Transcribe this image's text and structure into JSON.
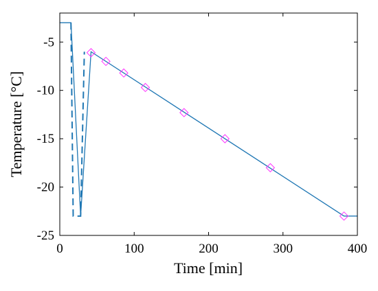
{
  "chart_data": {
    "type": "line",
    "xlabel": "Time [min]",
    "ylabel": "Temperature [°C]",
    "xlim": [
      0,
      400
    ],
    "ylim": [
      -25,
      -2
    ],
    "xticks": [
      0,
      100,
      200,
      300,
      400
    ],
    "yticks": [
      -25,
      -20,
      -15,
      -10,
      -5
    ],
    "grid": false,
    "colors": {
      "line": "#1f77b4",
      "marker": "#ff33ff",
      "axes": "#000000"
    },
    "series": [
      {
        "style": "solid",
        "x": [
          0,
          15,
          28,
          42,
          382,
          400
        ],
        "y": [
          -3,
          -3,
          -23,
          -6,
          -23,
          -23
        ]
      },
      {
        "style": "dashed",
        "x": [
          15,
          18,
          28,
          33
        ],
        "y": [
          -3,
          -23,
          -23,
          -6
        ]
      },
      {
        "style": "markers",
        "marker": "diamond",
        "x": [
          42,
          62,
          86,
          115,
          167,
          222,
          283,
          382
        ],
        "y": [
          -6.1,
          -7.0,
          -8.2,
          -9.7,
          -12.3,
          -15.0,
          -18.0,
          -23.0
        ]
      }
    ]
  }
}
